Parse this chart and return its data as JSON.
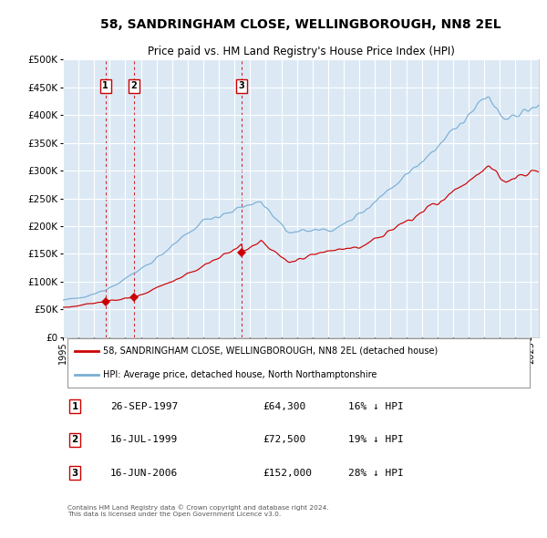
{
  "title": "58, SANDRINGHAM CLOSE, WELLINGBOROUGH, NN8 2EL",
  "subtitle": "Price paid vs. HM Land Registry's House Price Index (HPI)",
  "legend_label_red": "58, SANDRINGHAM CLOSE, WELLINGBOROUGH, NN8 2EL (detached house)",
  "legend_label_blue": "HPI: Average price, detached house, North Northamptonshire",
  "sales": [
    {
      "label": "1",
      "date_str": "26-SEP-1997",
      "price": 64300,
      "year": 1997.73,
      "pct": "16% ↓ HPI"
    },
    {
      "label": "2",
      "date_str": "16-JUL-1999",
      "price": 72500,
      "year": 1999.54,
      "pct": "19% ↓ HPI"
    },
    {
      "label": "3",
      "date_str": "16-JUN-2006",
      "price": 152000,
      "year": 2006.46,
      "pct": "28% ↓ HPI"
    }
  ],
  "copyright": "Contains HM Land Registry data © Crown copyright and database right 2024.\nThis data is licensed under the Open Government Licence v3.0.",
  "ylim": [
    0,
    500000
  ],
  "yticks": [
    0,
    50000,
    100000,
    150000,
    200000,
    250000,
    300000,
    350000,
    400000,
    450000,
    500000
  ],
  "xlim_start": 1995,
  "xlim_end": 2025.5,
  "background_color": "#dce9f5",
  "grid_color": "#ffffff",
  "red_line_color": "#cc0000",
  "blue_line_color": "#7bafd4",
  "sale_marker_color": "#cc0000",
  "vline_color": "#cc0000",
  "box_edge_color": "#cc0000",
  "title_fontsize": 10,
  "subtitle_fontsize": 8.5,
  "tick_fontsize": 7,
  "legend_fontsize": 7,
  "table_fontsize": 8
}
